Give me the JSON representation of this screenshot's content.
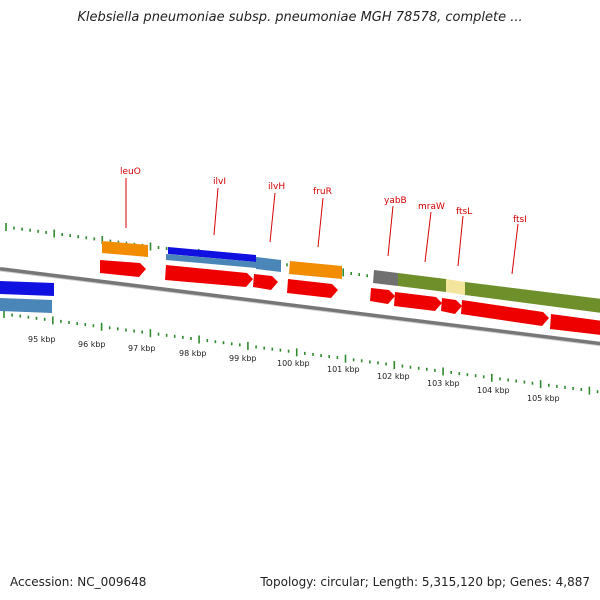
{
  "header": {
    "title": "Klebsiella pneumoniae subsp. pneumoniae MGH 78578, complete ..."
  },
  "footer": {
    "accession": "Accession: NC_009648",
    "stats": "Topology: circular; Length: 5,315,120 bp; Genes: 4,887"
  },
  "colors": {
    "backbone": "#8c8c8c",
    "tick": "#2f8a2f",
    "label": "#d40000",
    "cds": "#ee0000",
    "gene_orange": "#f28c00",
    "gene_blue": "#1010e0",
    "gene_steel": "#4a86b8",
    "gene_gray": "#707070",
    "gene_olive": "#6f8f2a",
    "gene_pale": "#f3e59c"
  },
  "genes": [
    {
      "name": "leuO"
    },
    {
      "name": "ilvI"
    },
    {
      "name": "ilvH"
    },
    {
      "name": "fruR"
    },
    {
      "name": "yabB"
    },
    {
      "name": "mraW"
    },
    {
      "name": "ftsL"
    },
    {
      "name": "ftsI"
    }
  ],
  "scale": {
    "ticks": [
      "95 kbp",
      "96 kbp",
      "97 kbp",
      "98 kbp",
      "99 kbp",
      "100 kbp",
      "101 kbp",
      "102 kbp",
      "103 kbp",
      "104 kbp",
      "105 kbp"
    ]
  }
}
